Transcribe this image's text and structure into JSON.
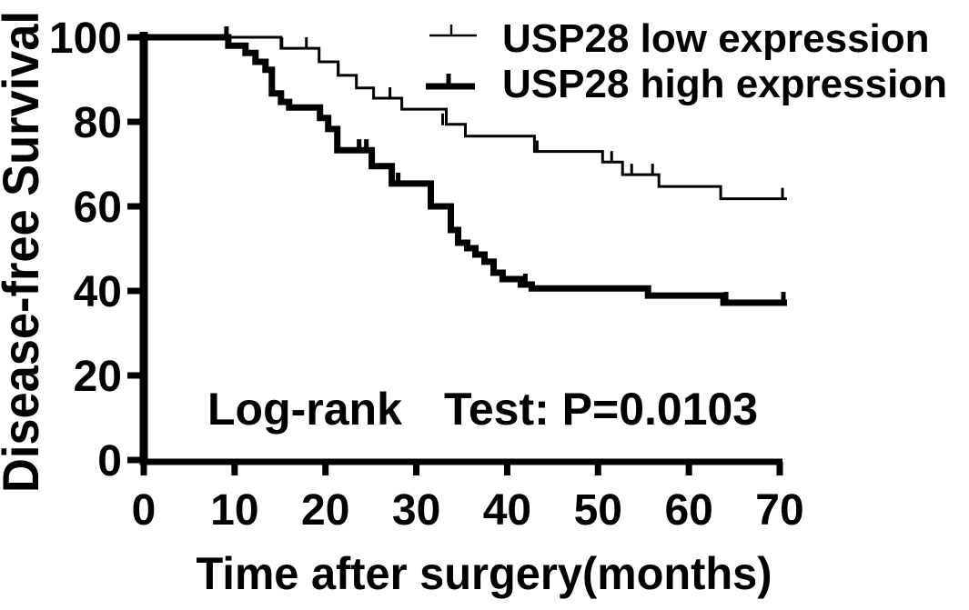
{
  "colors": {
    "ink": "#000000",
    "paper": "#ffffff"
  },
  "chart_data": {
    "type": "line",
    "subtype": "kaplan_meier_step_survival",
    "title": "",
    "xlabel": "Time after surgery(months)",
    "ylabel": "Disease-free Survival",
    "xlim": [
      0,
      70
    ],
    "ylim": [
      0,
      100
    ],
    "xticks": [
      0,
      10,
      20,
      30,
      40,
      50,
      60,
      70
    ],
    "yticks": [
      0,
      20,
      40,
      60,
      80,
      100
    ],
    "grid": false,
    "legend_position": "top-right",
    "annotation": {
      "part1": "Log-rank",
      "part2": "Test: P=0.0103",
      "full": "Log-rank  Test: P=0.0103"
    },
    "series": [
      {
        "name": "USP28 low expression",
        "line_weight": "thin",
        "stroke_width": 3,
        "color": "#000000",
        "steps": [
          [
            0,
            100
          ],
          [
            15.1,
            97.4
          ],
          [
            19.3,
            94.2
          ],
          [
            21.4,
            91.0
          ],
          [
            23.4,
            88.0
          ],
          [
            25.3,
            85.6
          ],
          [
            28.4,
            83.0
          ],
          [
            33.3,
            79.4
          ],
          [
            35.4,
            76.6
          ],
          [
            43.0,
            73.0
          ],
          [
            50.5,
            70.5
          ],
          [
            52.7,
            67.5
          ],
          [
            56.7,
            64.7
          ],
          [
            63.5,
            61.8
          ],
          [
            70.8,
            61.8
          ]
        ],
        "censor_marks": [
          [
            15.2,
            97.4
          ],
          [
            17.9,
            97.4
          ],
          [
            21.4,
            91.0
          ],
          [
            27.1,
            85.6
          ],
          [
            32.9,
            79.4
          ],
          [
            43.3,
            73.0
          ],
          [
            51.5,
            70.5
          ],
          [
            53.7,
            67.5
          ],
          [
            56.0,
            67.5
          ],
          [
            70.3,
            61.8
          ]
        ]
      },
      {
        "name": "USP28 high expression",
        "line_weight": "thick",
        "stroke_width": 7,
        "color": "#000000",
        "steps": [
          [
            0,
            100
          ],
          [
            9.3,
            98.0
          ],
          [
            11.2,
            96.3
          ],
          [
            12.3,
            94.2
          ],
          [
            13.4,
            92.3
          ],
          [
            14.1,
            86.7
          ],
          [
            15.1,
            84.7
          ],
          [
            16.0,
            83.4
          ],
          [
            19.4,
            80.9
          ],
          [
            20.3,
            78.3
          ],
          [
            21.3,
            73.3
          ],
          [
            25.1,
            69.5
          ],
          [
            27.3,
            65.4
          ],
          [
            31.6,
            60.0
          ],
          [
            33.8,
            54.4
          ],
          [
            34.6,
            51.4
          ],
          [
            35.6,
            50.1
          ],
          [
            36.5,
            48.6
          ],
          [
            37.5,
            46.9
          ],
          [
            38.5,
            44.3
          ],
          [
            39.5,
            42.8
          ],
          [
            41.5,
            41.5
          ],
          [
            42.7,
            40.6
          ],
          [
            55.5,
            38.9
          ],
          [
            63.8,
            37.2
          ],
          [
            70.8,
            37.2
          ]
        ],
        "censor_marks": [
          [
            9.1,
            100
          ],
          [
            23.7,
            73.3
          ],
          [
            24.5,
            73.3
          ],
          [
            28.0,
            65.4
          ],
          [
            42.0,
            41.5
          ],
          [
            64.1,
            37.2
          ],
          [
            70.4,
            37.2
          ]
        ]
      }
    ]
  }
}
